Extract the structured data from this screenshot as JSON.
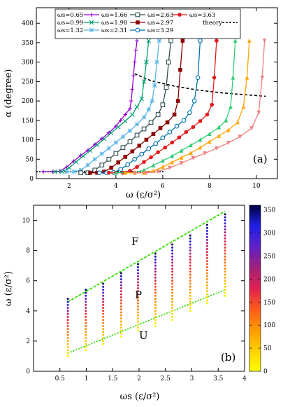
{
  "panel_a": {
    "label": "(a)",
    "xlabel": "ω (ε/σ²)",
    "ylabel": "α (degree)",
    "legend_theory": "theory",
    "chart_data": {
      "type": "line",
      "xlim": [
        0.6,
        10.9
      ],
      "ylim": [
        0,
        440
      ],
      "xticks": [
        2,
        4,
        6,
        8,
        10
      ],
      "yticks": [
        0,
        50,
        100,
        150,
        200,
        250,
        300,
        350,
        400
      ],
      "legend_placement": "top-left",
      "series": [
        {
          "name": "ωs=0.65",
          "color": "#9400d3",
          "marker": "plus",
          "x": [
            0.9,
            1.3,
            1.6,
            1.9,
            2.2,
            2.5,
            2.8,
            3.1,
            3.4,
            3.7,
            4.0,
            4.2,
            4.4,
            4.6,
            4.65,
            4.7,
            4.75,
            4.8,
            4.85,
            4.9
          ],
          "y": [
            18,
            18,
            19,
            30,
            45,
            60,
            73,
            88,
            103,
            118,
            135,
            150,
            165,
            180,
            200,
            230,
            265,
            300,
            330,
            355
          ]
        },
        {
          "name": "ωs=0.99",
          "color": "#009e73",
          "marker": "x",
          "x": [
            1.4,
            1.7,
            2.0,
            2.3,
            2.6,
            2.9,
            3.2,
            3.5,
            3.8,
            4.1,
            4.4,
            4.7,
            4.9,
            5.1,
            5.2,
            5.3,
            5.4
          ],
          "y": [
            18,
            18,
            28,
            43,
            58,
            72,
            87,
            102,
            118,
            133,
            148,
            165,
            185,
            205,
            250,
            300,
            355
          ]
        },
        {
          "name": "ωs=1.32",
          "color": "#56b4e9",
          "marker": "star",
          "x": [
            1.9,
            2.2,
            2.5,
            2.8,
            3.1,
            3.4,
            3.7,
            4.0,
            4.3,
            4.6,
            4.9,
            5.2,
            5.4,
            5.55,
            5.65,
            5.75,
            5.85
          ],
          "y": [
            18,
            18,
            22,
            35,
            50,
            64,
            78,
            93,
            108,
            123,
            140,
            158,
            178,
            200,
            240,
            300,
            355
          ]
        },
        {
          "name": "ωs=1.66",
          "color": "#9400d3",
          "marker": "plus",
          "legend_only": true
        },
        {
          "name": "ωs=1.98",
          "color": "#009e73",
          "marker": "x",
          "legend_only": true
        },
        {
          "name": "ωs=2.31",
          "color": "#56b4e9",
          "marker": "star",
          "legend_only": true
        },
        {
          "name": "ωs=2.63",
          "color": "#2f4f4f",
          "marker": "square",
          "x": [
            2.5,
            2.8,
            3.1,
            3.4,
            3.7,
            4.0,
            4.3,
            4.6,
            4.9,
            5.2,
            5.5,
            5.8,
            6.0,
            6.15,
            6.25,
            6.35
          ],
          "y": [
            15,
            15,
            22,
            35,
            50,
            65,
            80,
            95,
            112,
            128,
            145,
            165,
            190,
            235,
            300,
            355
          ]
        },
        {
          "name": "ωs=2.97",
          "color": "#8b0000",
          "marker": "filled-square",
          "x": [
            2.9,
            3.2,
            3.5,
            3.8,
            4.1,
            4.4,
            4.7,
            5.0,
            5.3,
            5.6,
            5.9,
            6.2,
            6.5,
            6.65,
            6.75,
            6.85
          ],
          "y": [
            15,
            15,
            18,
            28,
            42,
            56,
            70,
            85,
            100,
            115,
            130,
            145,
            165,
            200,
            280,
            355
          ]
        },
        {
          "name": "ωs=3.29",
          "color": "#0072b2",
          "marker": "circle",
          "x": [
            3.3,
            3.6,
            3.9,
            4.2,
            4.5,
            4.8,
            5.1,
            5.4,
            5.7,
            6.0,
            6.3,
            6.6,
            6.9,
            7.15,
            7.35,
            7.5,
            7.6
          ],
          "y": [
            15,
            15,
            16,
            24,
            36,
            50,
            63,
            77,
            90,
            105,
            120,
            135,
            150,
            170,
            200,
            260,
            355
          ]
        },
        {
          "name": "ωs=3.63",
          "color": "#e31a1c",
          "marker": "filled-circle",
          "x": [
            3.7,
            4.0,
            4.3,
            4.6,
            4.9,
            5.2,
            5.5,
            5.8,
            6.1,
            6.4,
            6.7,
            7.0,
            7.3,
            7.6,
            7.9,
            8.1,
            8.2,
            8.3
          ],
          "y": [
            15,
            15,
            15,
            20,
            30,
            43,
            55,
            68,
            80,
            93,
            106,
            120,
            133,
            148,
            165,
            190,
            260,
            355
          ]
        },
        {
          "name": "",
          "color": "#2ecc71",
          "marker": "triangle",
          "x": [
            4.0,
            4.4,
            4.8,
            5.2,
            5.6,
            6.0,
            6.4,
            6.8,
            7.2,
            7.6,
            8.0,
            8.4,
            8.7,
            8.9,
            9.0,
            9.1
          ],
          "y": [
            15,
            15,
            15,
            22,
            34,
            46,
            58,
            72,
            86,
            100,
            115,
            132,
            150,
            185,
            260,
            355
          ]
        },
        {
          "name": "",
          "color": "#ffa500",
          "marker": "triangle",
          "x": [
            4.4,
            4.8,
            5.2,
            5.6,
            6.0,
            6.4,
            6.8,
            7.2,
            7.6,
            8.0,
            8.4,
            8.8,
            9.2,
            9.45,
            9.6,
            9.7
          ],
          "y": [
            15,
            15,
            15,
            20,
            30,
            42,
            54,
            66,
            80,
            95,
            110,
            125,
            145,
            185,
            260,
            355
          ]
        },
        {
          "name": "",
          "color": "#f08080",
          "marker": "triangle-down",
          "x": [
            4.8,
            5.3,
            5.8,
            6.3,
            6.8,
            7.3,
            7.8,
            8.3,
            8.8,
            9.3,
            9.8,
            10.1,
            10.25,
            10.35
          ],
          "y": [
            15,
            15,
            18,
            28,
            40,
            53,
            65,
            78,
            92,
            108,
            130,
            170,
            260,
            355
          ]
        }
      ],
      "theory": {
        "name": "theory",
        "x": [
          4.8,
          5.5,
          6.5,
          7.5,
          8.5,
          9.5,
          10.4
        ],
        "y": [
          270,
          252,
          238,
          228,
          221,
          216,
          212
        ],
        "baseline_x": [
          0.6,
          6.1
        ],
        "baseline_y": 18
      }
    }
  },
  "panel_b": {
    "label": "(b)",
    "xlabel": "ωs (ε/σ²)",
    "ylabel": "ω (ε/σ²)",
    "region_F": "F",
    "region_P": "P",
    "region_U": "U",
    "colorbar_ticks": [
      "0",
      "50",
      "100",
      "150",
      "200",
      "250",
      "300",
      "350"
    ],
    "chart_data": {
      "type": "scatter",
      "xlim": [
        0,
        4
      ],
      "ylim": [
        0,
        11
      ],
      "xticks": [
        "0.5",
        "1",
        "1.5",
        "2",
        "2.5",
        "3",
        "3.5",
        "4"
      ],
      "yticks": [
        "0",
        "2",
        "4",
        "6",
        "8",
        "10"
      ],
      "ws": [
        0.65,
        0.99,
        1.32,
        1.66,
        1.98,
        2.31,
        2.63,
        2.97,
        3.29,
        3.63
      ],
      "omega_start": [
        1.0,
        1.4,
        1.8,
        2.3,
        2.7,
        3.0,
        3.4,
        4.0,
        4.5,
        5.0
      ],
      "omega_end": [
        4.7,
        5.3,
        5.8,
        6.4,
        7.1,
        7.8,
        8.5,
        9.1,
        9.7,
        10.4
      ],
      "omega_step": 0.2,
      "upper_line": {
        "x": [
          0.65,
          3.63
        ],
        "y": [
          4.6,
          10.6
        ],
        "color": "#33dd00"
      },
      "lower_line": {
        "x": [
          0.65,
          3.63
        ],
        "y": [
          1.2,
          5.4
        ],
        "color": "#33dd00"
      },
      "colorbar_range": [
        0,
        360
      ],
      "colormap": [
        "#ffff00",
        "#ffd000",
        "#ff9a00",
        "#ff5a1a",
        "#e02050",
        "#a0207a",
        "#6020c8",
        "#2020e8",
        "#000040"
      ]
    }
  }
}
